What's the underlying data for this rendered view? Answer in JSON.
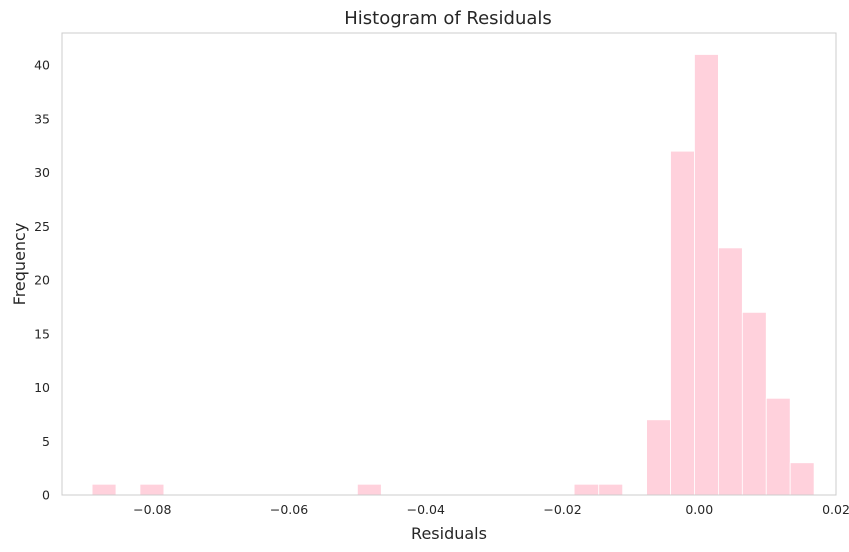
{
  "chart_data": {
    "type": "bar",
    "title": "Histogram of Residuals",
    "xlabel": "Residuals",
    "ylabel": "Frequency",
    "xlim": [
      -0.0932,
      0.02
    ],
    "ylim": [
      0,
      43
    ],
    "grid": false,
    "bar_color": "#ffd1dc",
    "bar_edge_color": "#ffffff",
    "frame_color": "#cccccc",
    "x_ticks": [
      {
        "value": -0.08,
        "label": "−0.08"
      },
      {
        "value": -0.06,
        "label": "−0.06"
      },
      {
        "value": -0.04,
        "label": "−0.04"
      },
      {
        "value": -0.02,
        "label": "−0.02"
      },
      {
        "value": 0.0,
        "label": "0.00"
      },
      {
        "value": 0.02,
        "label": "0.02"
      }
    ],
    "y_ticks": [
      {
        "value": 0,
        "label": "0"
      },
      {
        "value": 5,
        "label": "5"
      },
      {
        "value": 10,
        "label": "10"
      },
      {
        "value": 15,
        "label": "15"
      },
      {
        "value": 20,
        "label": "20"
      },
      {
        "value": 25,
        "label": "25"
      },
      {
        "value": 30,
        "label": "30"
      },
      {
        "value": 35,
        "label": "35"
      },
      {
        "value": 40,
        "label": "40"
      }
    ],
    "bins": [
      {
        "x0": -0.0888,
        "x1": -0.0853,
        "count": 1
      },
      {
        "x0": -0.0818,
        "x1": -0.0783,
        "count": 1
      },
      {
        "x0": -0.05,
        "x1": -0.0465,
        "count": 1
      },
      {
        "x0": -0.0183,
        "x1": -0.0147,
        "count": 1
      },
      {
        "x0": -0.0147,
        "x1": -0.0112,
        "count": 1
      },
      {
        "x0": -0.0077,
        "x1": -0.0042,
        "count": 7
      },
      {
        "x0": -0.0042,
        "x1": -0.0007,
        "count": 32
      },
      {
        "x0": -0.0007,
        "x1": 0.0028,
        "count": 41
      },
      {
        "x0": 0.0028,
        "x1": 0.0063,
        "count": 23
      },
      {
        "x0": 0.0063,
        "x1": 0.0098,
        "count": 17
      },
      {
        "x0": 0.0098,
        "x1": 0.0133,
        "count": 9
      },
      {
        "x0": 0.0133,
        "x1": 0.0168,
        "count": 3
      }
    ]
  }
}
